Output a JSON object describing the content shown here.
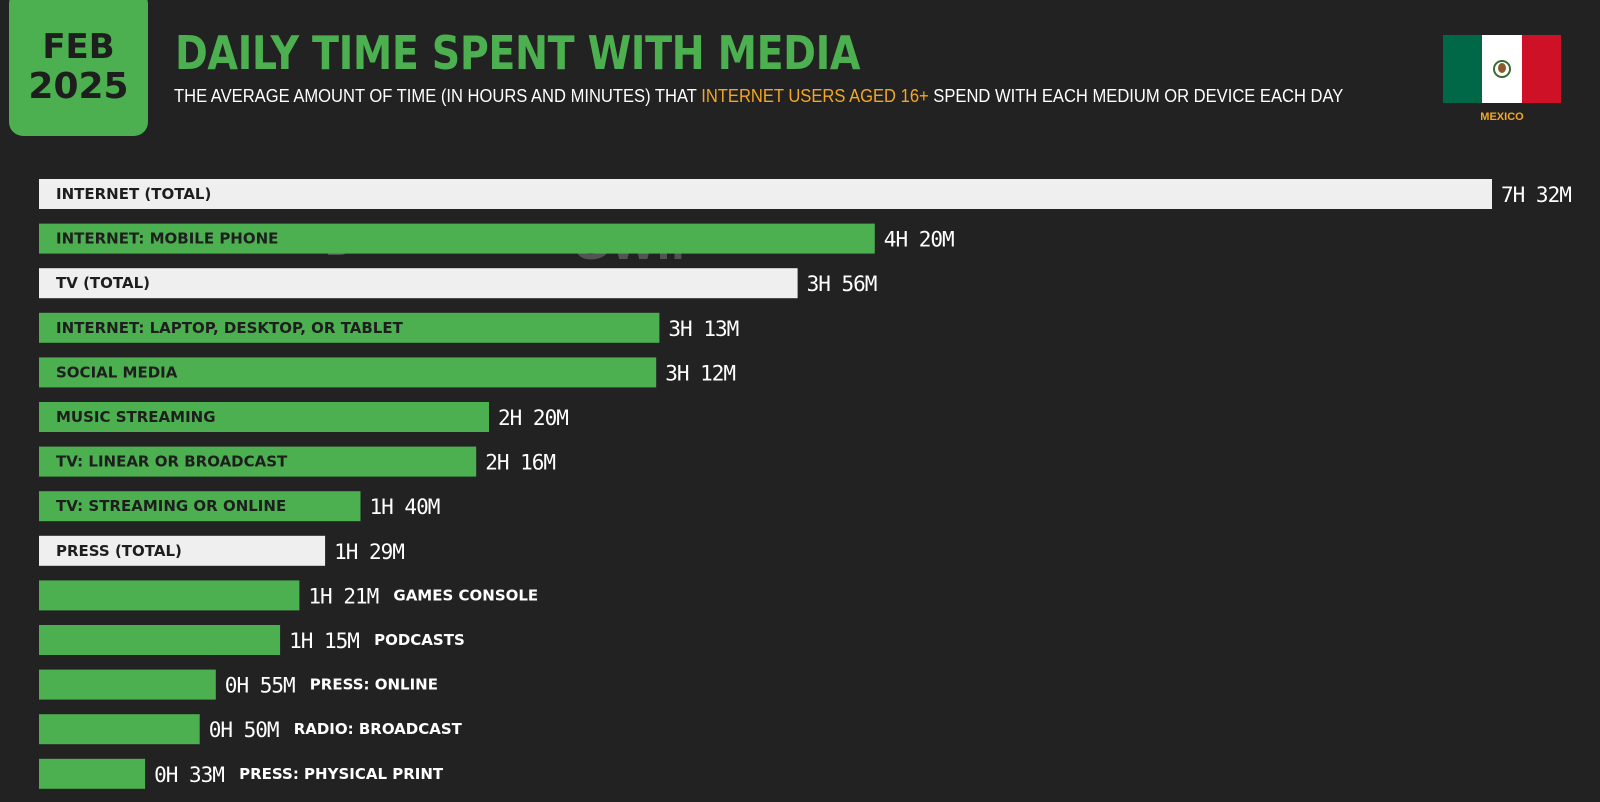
{
  "header": {
    "date_month": "FEB",
    "date_year": "2025",
    "title": "DAILY TIME SPENT WITH MEDIA",
    "subtitle_pre": "THE AVERAGE AMOUNT OF TIME (IN HOURS AND MINUTES) THAT ",
    "subtitle_highlight": "INTERNET USERS AGED 16+",
    "subtitle_post": " SPEND WITH EACH MEDIUM OR DEVICE EACH DAY",
    "country": "MEXICO"
  },
  "watermark": {
    "brand1": "DATAREPORTAL",
    "brand2": "GWI."
  },
  "colors": {
    "accent": "#4caf50",
    "highlight": "#f5a623",
    "total_bar": "#efefef",
    "background": "#222222"
  },
  "chart_data": {
    "type": "bar",
    "orientation": "horizontal",
    "unit": "minutes",
    "categories": [
      "INTERNET (TOTAL)",
      "INTERNET: MOBILE PHONE",
      "TV (TOTAL)",
      "INTERNET: LAPTOP, DESKTOP, OR TABLET",
      "SOCIAL MEDIA",
      "MUSIC STREAMING",
      "TV: LINEAR OR BROADCAST",
      "TV: STREAMING OR ONLINE",
      "PRESS (TOTAL)",
      "GAMES CONSOLE",
      "PODCASTS",
      "PRESS: ONLINE",
      "RADIO: BROADCAST",
      "PRESS: PHYSICAL PRINT"
    ],
    "values": [
      452,
      260,
      236,
      193,
      192,
      140,
      136,
      100,
      89,
      81,
      75,
      55,
      50,
      33
    ],
    "value_labels": [
      "7H 32M",
      "4H 20M",
      "3H 56M",
      "3H 13M",
      "3H 12M",
      "2H 20M",
      "2H 16M",
      "1H 40M",
      "1H 29M",
      "1H 21M",
      "1H 15M",
      "0H 55M",
      "0H 50M",
      "0H 33M"
    ],
    "is_total": [
      true,
      false,
      true,
      false,
      false,
      false,
      false,
      false,
      true,
      false,
      false,
      false,
      false,
      false
    ],
    "xlim": [
      0,
      452
    ]
  }
}
